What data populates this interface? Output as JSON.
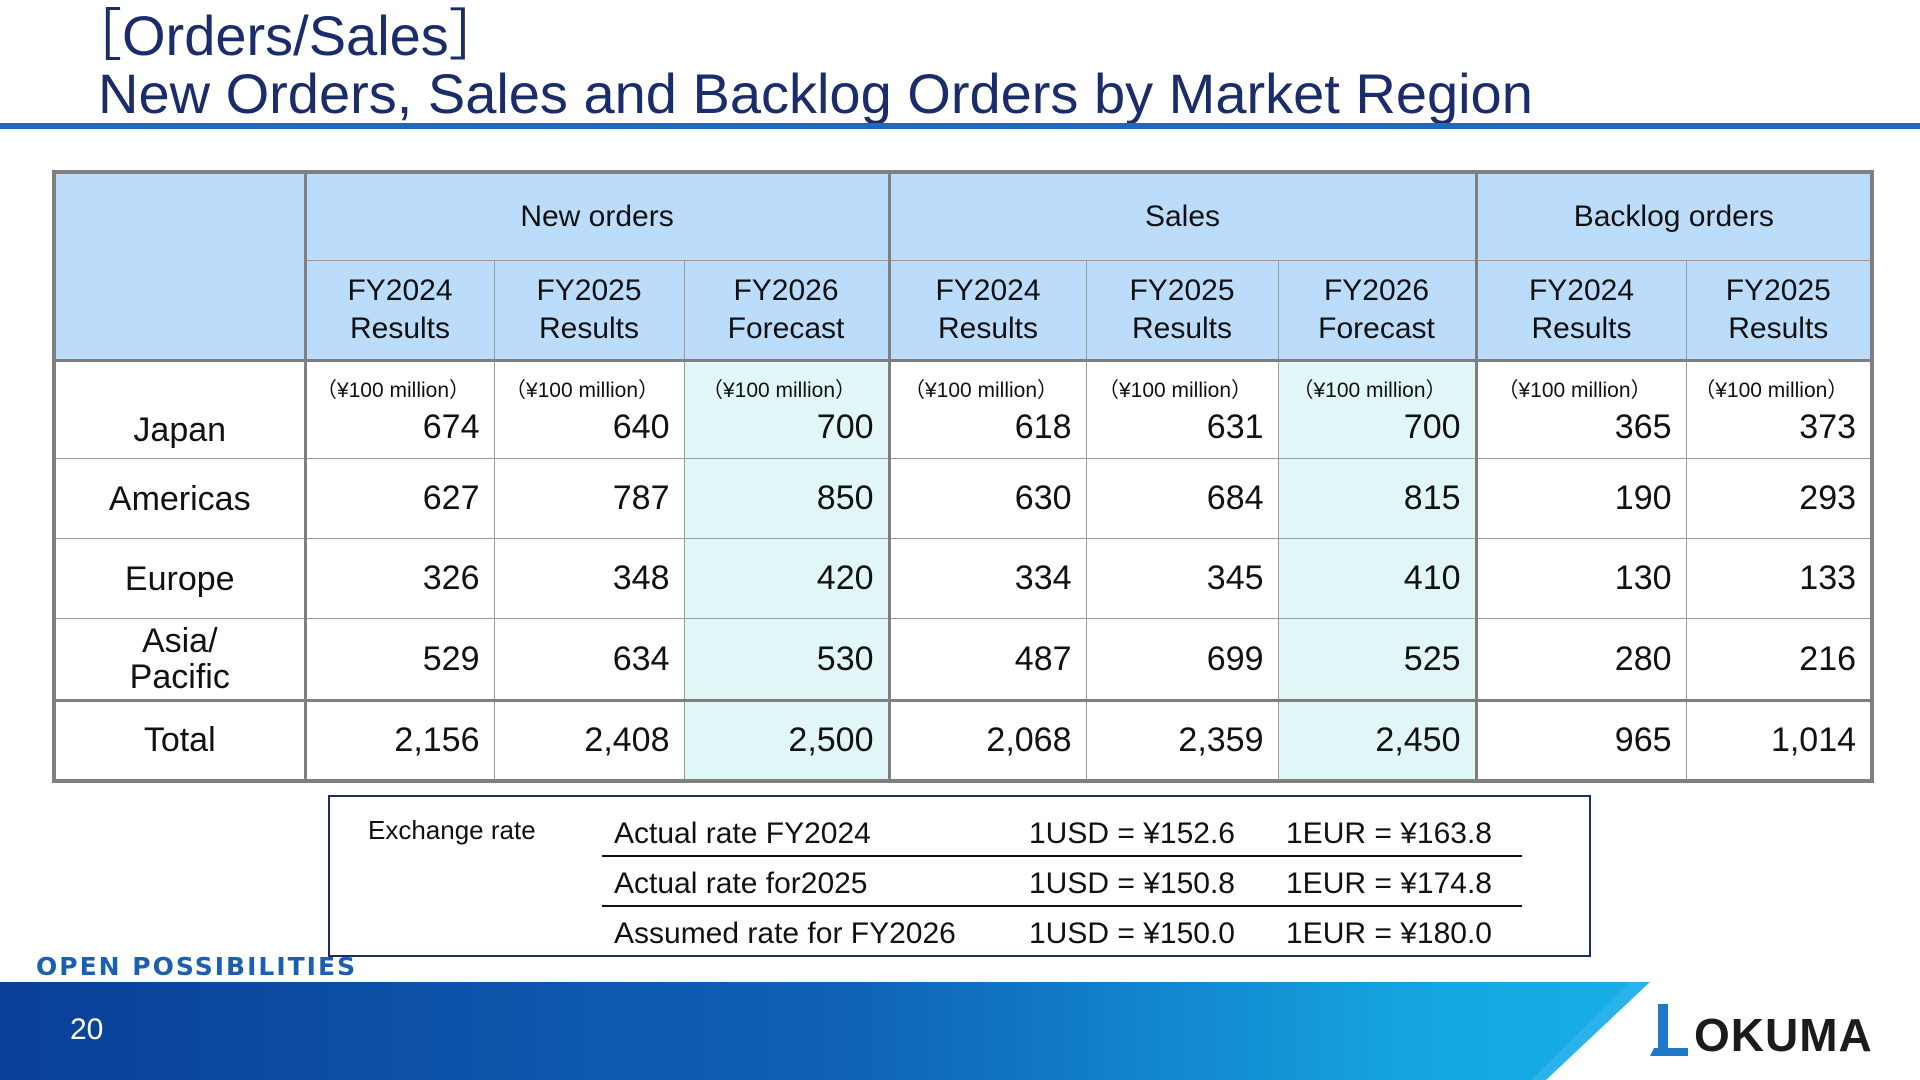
{
  "header": {
    "title_line1": "［Orders/Sales］",
    "title_line2": "New Orders, Sales and Backlog Orders by Market Region"
  },
  "table": {
    "groups": [
      "New orders",
      "Sales",
      "Backlog orders"
    ],
    "subheaders": [
      [
        "FY2024",
        "Results"
      ],
      [
        "FY2025",
        "Results"
      ],
      [
        "FY2026",
        "Forecast"
      ],
      [
        "FY2024",
        "Results"
      ],
      [
        "FY2025",
        "Results"
      ],
      [
        "FY2026",
        "Forecast"
      ],
      [
        "FY2024",
        "Results"
      ],
      [
        "FY2025",
        "Results"
      ]
    ],
    "unit": "（¥100 million）",
    "rows": [
      {
        "region": "Japan",
        "values": [
          "674",
          "640",
          "700",
          "618",
          "631",
          "700",
          "365",
          "373"
        ]
      },
      {
        "region": "Americas",
        "values": [
          "627",
          "787",
          "850",
          "630",
          "684",
          "815",
          "190",
          "293"
        ]
      },
      {
        "region": "Europe",
        "values": [
          "326",
          "348",
          "420",
          "334",
          "345",
          "410",
          "130",
          "133"
        ]
      },
      {
        "region_line1": "Asia/",
        "region_line2": "Pacific",
        "values": [
          "529",
          "634",
          "530",
          "487",
          "699",
          "525",
          "280",
          "216"
        ]
      },
      {
        "region": "Total",
        "values": [
          "2,156",
          "2,408",
          "2,500",
          "2,068",
          "2,359",
          "2,450",
          "965",
          "1,014"
        ]
      }
    ]
  },
  "exchange": {
    "label": "Exchange rate",
    "rows": [
      {
        "name": "Actual rate FY2024",
        "usd": "1USD = ¥152.6",
        "eur": "1EUR = ¥163.8"
      },
      {
        "name": "Actual rate for2025",
        "usd": "1USD = ¥150.8",
        "eur": "1EUR = ¥174.8"
      },
      {
        "name": "Assumed rate for FY2026",
        "usd": "1USD = ¥150.0",
        "eur": "1EUR = ¥180.0"
      }
    ]
  },
  "footer": {
    "slogan": "OPEN POSSIBILITIES",
    "page_number": "20",
    "logo_text": "OKUMA"
  },
  "colors": {
    "title": "#1a2c6b",
    "rule": "#1b6ac0",
    "header_fill": "#bcdcfc",
    "forecast_fill": "#e1f6f7",
    "footer_start": "#0a3f99",
    "footer_end": "#1cb8ec"
  }
}
